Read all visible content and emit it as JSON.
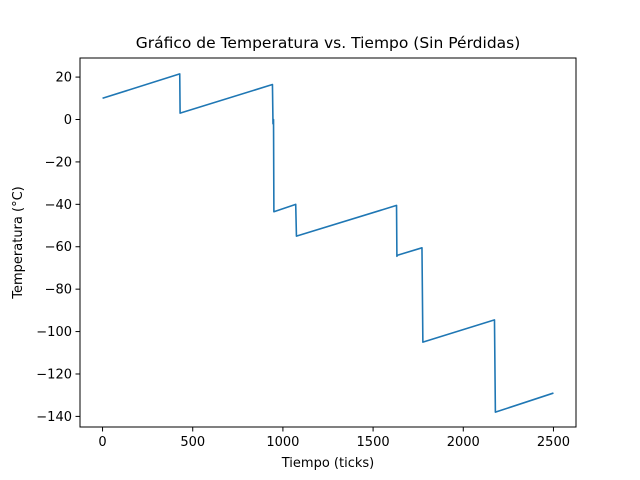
{
  "chart_data": {
    "type": "line",
    "title": "Gráfico de Temperatura vs. Tiempo (Sin Pérdidas)",
    "xlabel": "Tiempo (ticks)",
    "ylabel": "Temperatura (°C)",
    "xlim": [
      -125,
      2625
    ],
    "ylim": [
      -145,
      29
    ],
    "xticks": [
      0,
      500,
      1000,
      1500,
      2000,
      2500
    ],
    "yticks": [
      20,
      0,
      -20,
      -40,
      -60,
      -80,
      -100,
      -120,
      -140
    ],
    "grid": false,
    "color": "#1f77b4",
    "series": [
      {
        "x": [
          0,
          428,
          430,
          942,
          945,
          948,
          950,
          1071,
          1075,
          1630,
          1632,
          1635,
          1771,
          1776,
          2173,
          2178,
          2500
        ],
        "y": [
          10,
          21.5,
          3,
          16.5,
          -2,
          0,
          -43.5,
          -40,
          -55,
          -40.5,
          -64.5,
          -64,
          -60.5,
          -105,
          -94.5,
          -138,
          -129
        ]
      }
    ]
  }
}
